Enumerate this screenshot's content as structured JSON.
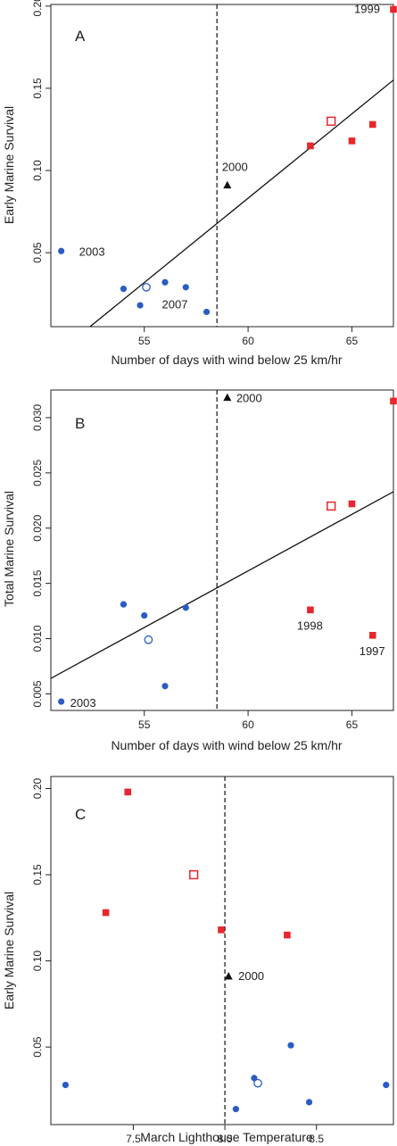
{
  "colors": {
    "low_wind": "#2a5cc4",
    "high_wind": "#e8262c",
    "year_2000": "#111111",
    "axis": "#222222"
  },
  "chart_data": [
    {
      "type": "scatter",
      "panel": "A",
      "xlabel": "Number of days with wind below 25 km/hr",
      "ylabel": "Early Marine Survival",
      "xlim": [
        50.5,
        67
      ],
      "ylim": [
        0.005,
        0.201
      ],
      "xticks": [
        55,
        60,
        65
      ],
      "yticks": [
        0.05,
        0.1,
        0.15,
        0.2
      ],
      "ytick_labels": [
        "0.05",
        "0.10",
        "0.15",
        "0.20"
      ],
      "vline_x": 58.5,
      "regression_line": [
        [
          51.9,
          0.0
        ],
        [
          67,
          0.155
        ]
      ],
      "points": [
        {
          "x": 51.0,
          "y": 0.051,
          "group": "low",
          "marker": "filled_circle",
          "label": "2003"
        },
        {
          "x": 54.0,
          "y": 0.028,
          "group": "low",
          "marker": "filled_circle"
        },
        {
          "x": 54.8,
          "y": 0.018,
          "group": "low",
          "marker": "filled_circle"
        },
        {
          "x": 55.1,
          "y": 0.029,
          "group": "low",
          "marker": "open_circle"
        },
        {
          "x": 56.0,
          "y": 0.032,
          "group": "low",
          "marker": "filled_circle"
        },
        {
          "x": 57.0,
          "y": 0.029,
          "group": "low",
          "marker": "filled_circle"
        },
        {
          "x": 58.0,
          "y": 0.014,
          "group": "low",
          "marker": "filled_circle",
          "label": "2007"
        },
        {
          "x": 59.0,
          "y": 0.091,
          "group": "year2000",
          "marker": "triangle",
          "label": "2000"
        },
        {
          "x": 63.0,
          "y": 0.115,
          "group": "high",
          "marker": "filled_square"
        },
        {
          "x": 64.0,
          "y": 0.13,
          "group": "high",
          "marker": "open_square"
        },
        {
          "x": 65.0,
          "y": 0.118,
          "group": "high",
          "marker": "filled_square"
        },
        {
          "x": 66.0,
          "y": 0.128,
          "group": "high",
          "marker": "filled_square"
        },
        {
          "x": 67.0,
          "y": 0.198,
          "group": "high",
          "marker": "filled_square",
          "label": "1999"
        }
      ]
    },
    {
      "type": "scatter",
      "panel": "B",
      "xlabel": "Number of days with wind below 25 km/hr",
      "ylabel": "Total Marine Survival",
      "xlim": [
        50.5,
        67
      ],
      "ylim": [
        0.0035,
        0.0325
      ],
      "xticks": [
        55,
        60,
        65
      ],
      "yticks": [
        0.005,
        0.01,
        0.015,
        0.02,
        0.025,
        0.03
      ],
      "ytick_labels": [
        "0.005",
        "0.010",
        "0.015",
        "0.020",
        "0.025",
        "0.030"
      ],
      "vline_x": 58.5,
      "regression_line": [
        [
          50.5,
          0.0064
        ],
        [
          67,
          0.0233
        ]
      ],
      "points": [
        {
          "x": 51.0,
          "y": 0.0043,
          "group": "low",
          "marker": "filled_circle",
          "label": "2003"
        },
        {
          "x": 54.0,
          "y": 0.0131,
          "group": "low",
          "marker": "filled_circle"
        },
        {
          "x": 55.0,
          "y": 0.0121,
          "group": "low",
          "marker": "filled_circle"
        },
        {
          "x": 55.2,
          "y": 0.0099,
          "group": "low",
          "marker": "open_circle"
        },
        {
          "x": 56.0,
          "y": 0.0057,
          "group": "low",
          "marker": "filled_circle"
        },
        {
          "x": 57.0,
          "y": 0.0128,
          "group": "low",
          "marker": "filled_circle"
        },
        {
          "x": 59.0,
          "y": 0.0318,
          "group": "year2000",
          "marker": "triangle",
          "label": "2000"
        },
        {
          "x": 63.0,
          "y": 0.0126,
          "group": "high",
          "marker": "filled_square",
          "label": "1998"
        },
        {
          "x": 64.0,
          "y": 0.022,
          "group": "high",
          "marker": "open_square"
        },
        {
          "x": 65.0,
          "y": 0.0222,
          "group": "high",
          "marker": "filled_square"
        },
        {
          "x": 66.0,
          "y": 0.0103,
          "group": "high",
          "marker": "filled_square",
          "label": "1997"
        },
        {
          "x": 67.0,
          "y": 0.0315,
          "group": "high",
          "marker": "filled_square"
        }
      ]
    },
    {
      "type": "scatter",
      "panel": "C",
      "xlabel": "March Lighthouse Temperature",
      "ylabel": "Early Marine Survival",
      "xlim": [
        7.05,
        8.92
      ],
      "ylim": [
        0.005,
        0.207
      ],
      "xticks": [
        7.5,
        8.0,
        8.5
      ],
      "xtick_labels": [
        "7.5",
        "8.0",
        "8.5"
      ],
      "yticks": [
        0.05,
        0.1,
        0.15,
        0.2
      ],
      "ytick_labels": [
        "0.05",
        "0.10",
        "0.15",
        "0.20"
      ],
      "vline_x": 8.0,
      "points": [
        {
          "x": 7.13,
          "y": 0.028,
          "group": "low",
          "marker": "filled_circle"
        },
        {
          "x": 7.35,
          "y": 0.128,
          "group": "high",
          "marker": "filled_square"
        },
        {
          "x": 7.47,
          "y": 0.198,
          "group": "high",
          "marker": "filled_square"
        },
        {
          "x": 7.83,
          "y": 0.15,
          "group": "high",
          "marker": "open_square"
        },
        {
          "x": 7.98,
          "y": 0.118,
          "group": "high",
          "marker": "filled_square"
        },
        {
          "x": 8.02,
          "y": 0.091,
          "group": "year2000",
          "marker": "triangle",
          "label": "2000"
        },
        {
          "x": 8.06,
          "y": 0.014,
          "group": "low",
          "marker": "filled_circle"
        },
        {
          "x": 8.16,
          "y": 0.032,
          "group": "low",
          "marker": "filled_circle"
        },
        {
          "x": 8.18,
          "y": 0.029,
          "group": "low",
          "marker": "open_circle"
        },
        {
          "x": 8.34,
          "y": 0.115,
          "group": "high",
          "marker": "filled_square"
        },
        {
          "x": 8.36,
          "y": 0.051,
          "group": "low",
          "marker": "filled_circle"
        },
        {
          "x": 8.46,
          "y": 0.018,
          "group": "low",
          "marker": "filled_circle"
        },
        {
          "x": 8.88,
          "y": 0.028,
          "group": "low",
          "marker": "filled_circle"
        }
      ]
    }
  ]
}
